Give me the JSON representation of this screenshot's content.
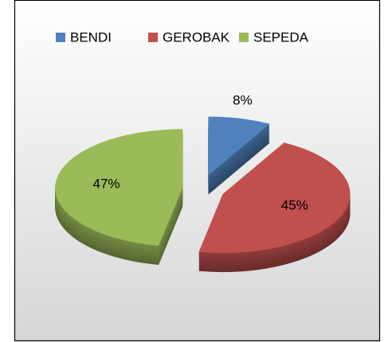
{
  "chart_data": {
    "type": "pie",
    "categories": [
      "BENDI",
      "GEROBAK",
      "SEPEDA"
    ],
    "values": [
      8,
      45,
      47
    ],
    "value_labels": [
      "8%",
      "45%",
      "47%"
    ],
    "colors": [
      "#4f81bd",
      "#c0504d",
      "#9bbb59"
    ],
    "legend": "top",
    "exploded": true,
    "three_d": true
  }
}
